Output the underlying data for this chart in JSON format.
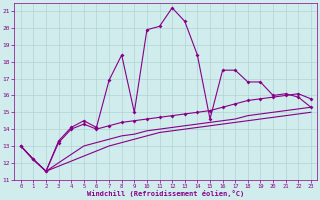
{
  "xlabel": "Windchill (Refroidissement éolien,°C)",
  "xlim": [
    -0.5,
    23.5
  ],
  "ylim": [
    11,
    21.5
  ],
  "xticks": [
    0,
    1,
    2,
    3,
    4,
    5,
    6,
    7,
    8,
    9,
    10,
    11,
    12,
    13,
    14,
    15,
    16,
    17,
    18,
    19,
    20,
    21,
    22,
    23
  ],
  "yticks": [
    11,
    12,
    13,
    14,
    15,
    16,
    17,
    18,
    19,
    20,
    21
  ],
  "background_color": "#d0ecec",
  "grid_color": "#b0d4d4",
  "line_color": "#880088",
  "line1_x": [
    0,
    1,
    2,
    3,
    4,
    5,
    6,
    7,
    8,
    9,
    10,
    11,
    12,
    13,
    14,
    15,
    16,
    17,
    18,
    19,
    20,
    21,
    22,
    23
  ],
  "line1_y": [
    13.0,
    12.2,
    11.5,
    13.3,
    14.1,
    14.5,
    14.1,
    16.9,
    18.4,
    15.0,
    19.9,
    20.1,
    21.2,
    20.4,
    18.4,
    14.6,
    17.5,
    17.5,
    16.8,
    16.8,
    16.0,
    16.1,
    15.9,
    15.3
  ],
  "line2_x": [
    0,
    1,
    2,
    3,
    4,
    5,
    6,
    7,
    8,
    9,
    10,
    11,
    12,
    13,
    14,
    15,
    16,
    17,
    18,
    19,
    20,
    21,
    22,
    23
  ],
  "line2_y": [
    13.0,
    12.2,
    11.5,
    13.2,
    14.0,
    14.3,
    14.0,
    14.2,
    14.4,
    14.5,
    14.6,
    14.7,
    14.8,
    14.9,
    15.0,
    15.1,
    15.3,
    15.5,
    15.7,
    15.8,
    15.9,
    16.0,
    16.1,
    15.8
  ],
  "line3_x": [
    0,
    1,
    2,
    3,
    4,
    5,
    6,
    7,
    8,
    9,
    10,
    11,
    12,
    13,
    14,
    15,
    16,
    17,
    18,
    19,
    20,
    21,
    22,
    23
  ],
  "line3_y": [
    13.0,
    12.2,
    11.5,
    12.0,
    12.5,
    13.0,
    13.2,
    13.4,
    13.6,
    13.7,
    13.9,
    14.0,
    14.1,
    14.2,
    14.3,
    14.4,
    14.5,
    14.6,
    14.8,
    14.9,
    15.0,
    15.1,
    15.2,
    15.3
  ],
  "line4_x": [
    0,
    1,
    2,
    3,
    4,
    5,
    6,
    7,
    8,
    9,
    10,
    11,
    12,
    13,
    14,
    15,
    16,
    17,
    18,
    19,
    20,
    21,
    22,
    23
  ],
  "line4_y": [
    13.0,
    12.2,
    11.5,
    11.8,
    12.1,
    12.4,
    12.7,
    13.0,
    13.2,
    13.4,
    13.6,
    13.8,
    13.9,
    14.0,
    14.1,
    14.2,
    14.3,
    14.4,
    14.5,
    14.6,
    14.7,
    14.8,
    14.9,
    15.0
  ]
}
